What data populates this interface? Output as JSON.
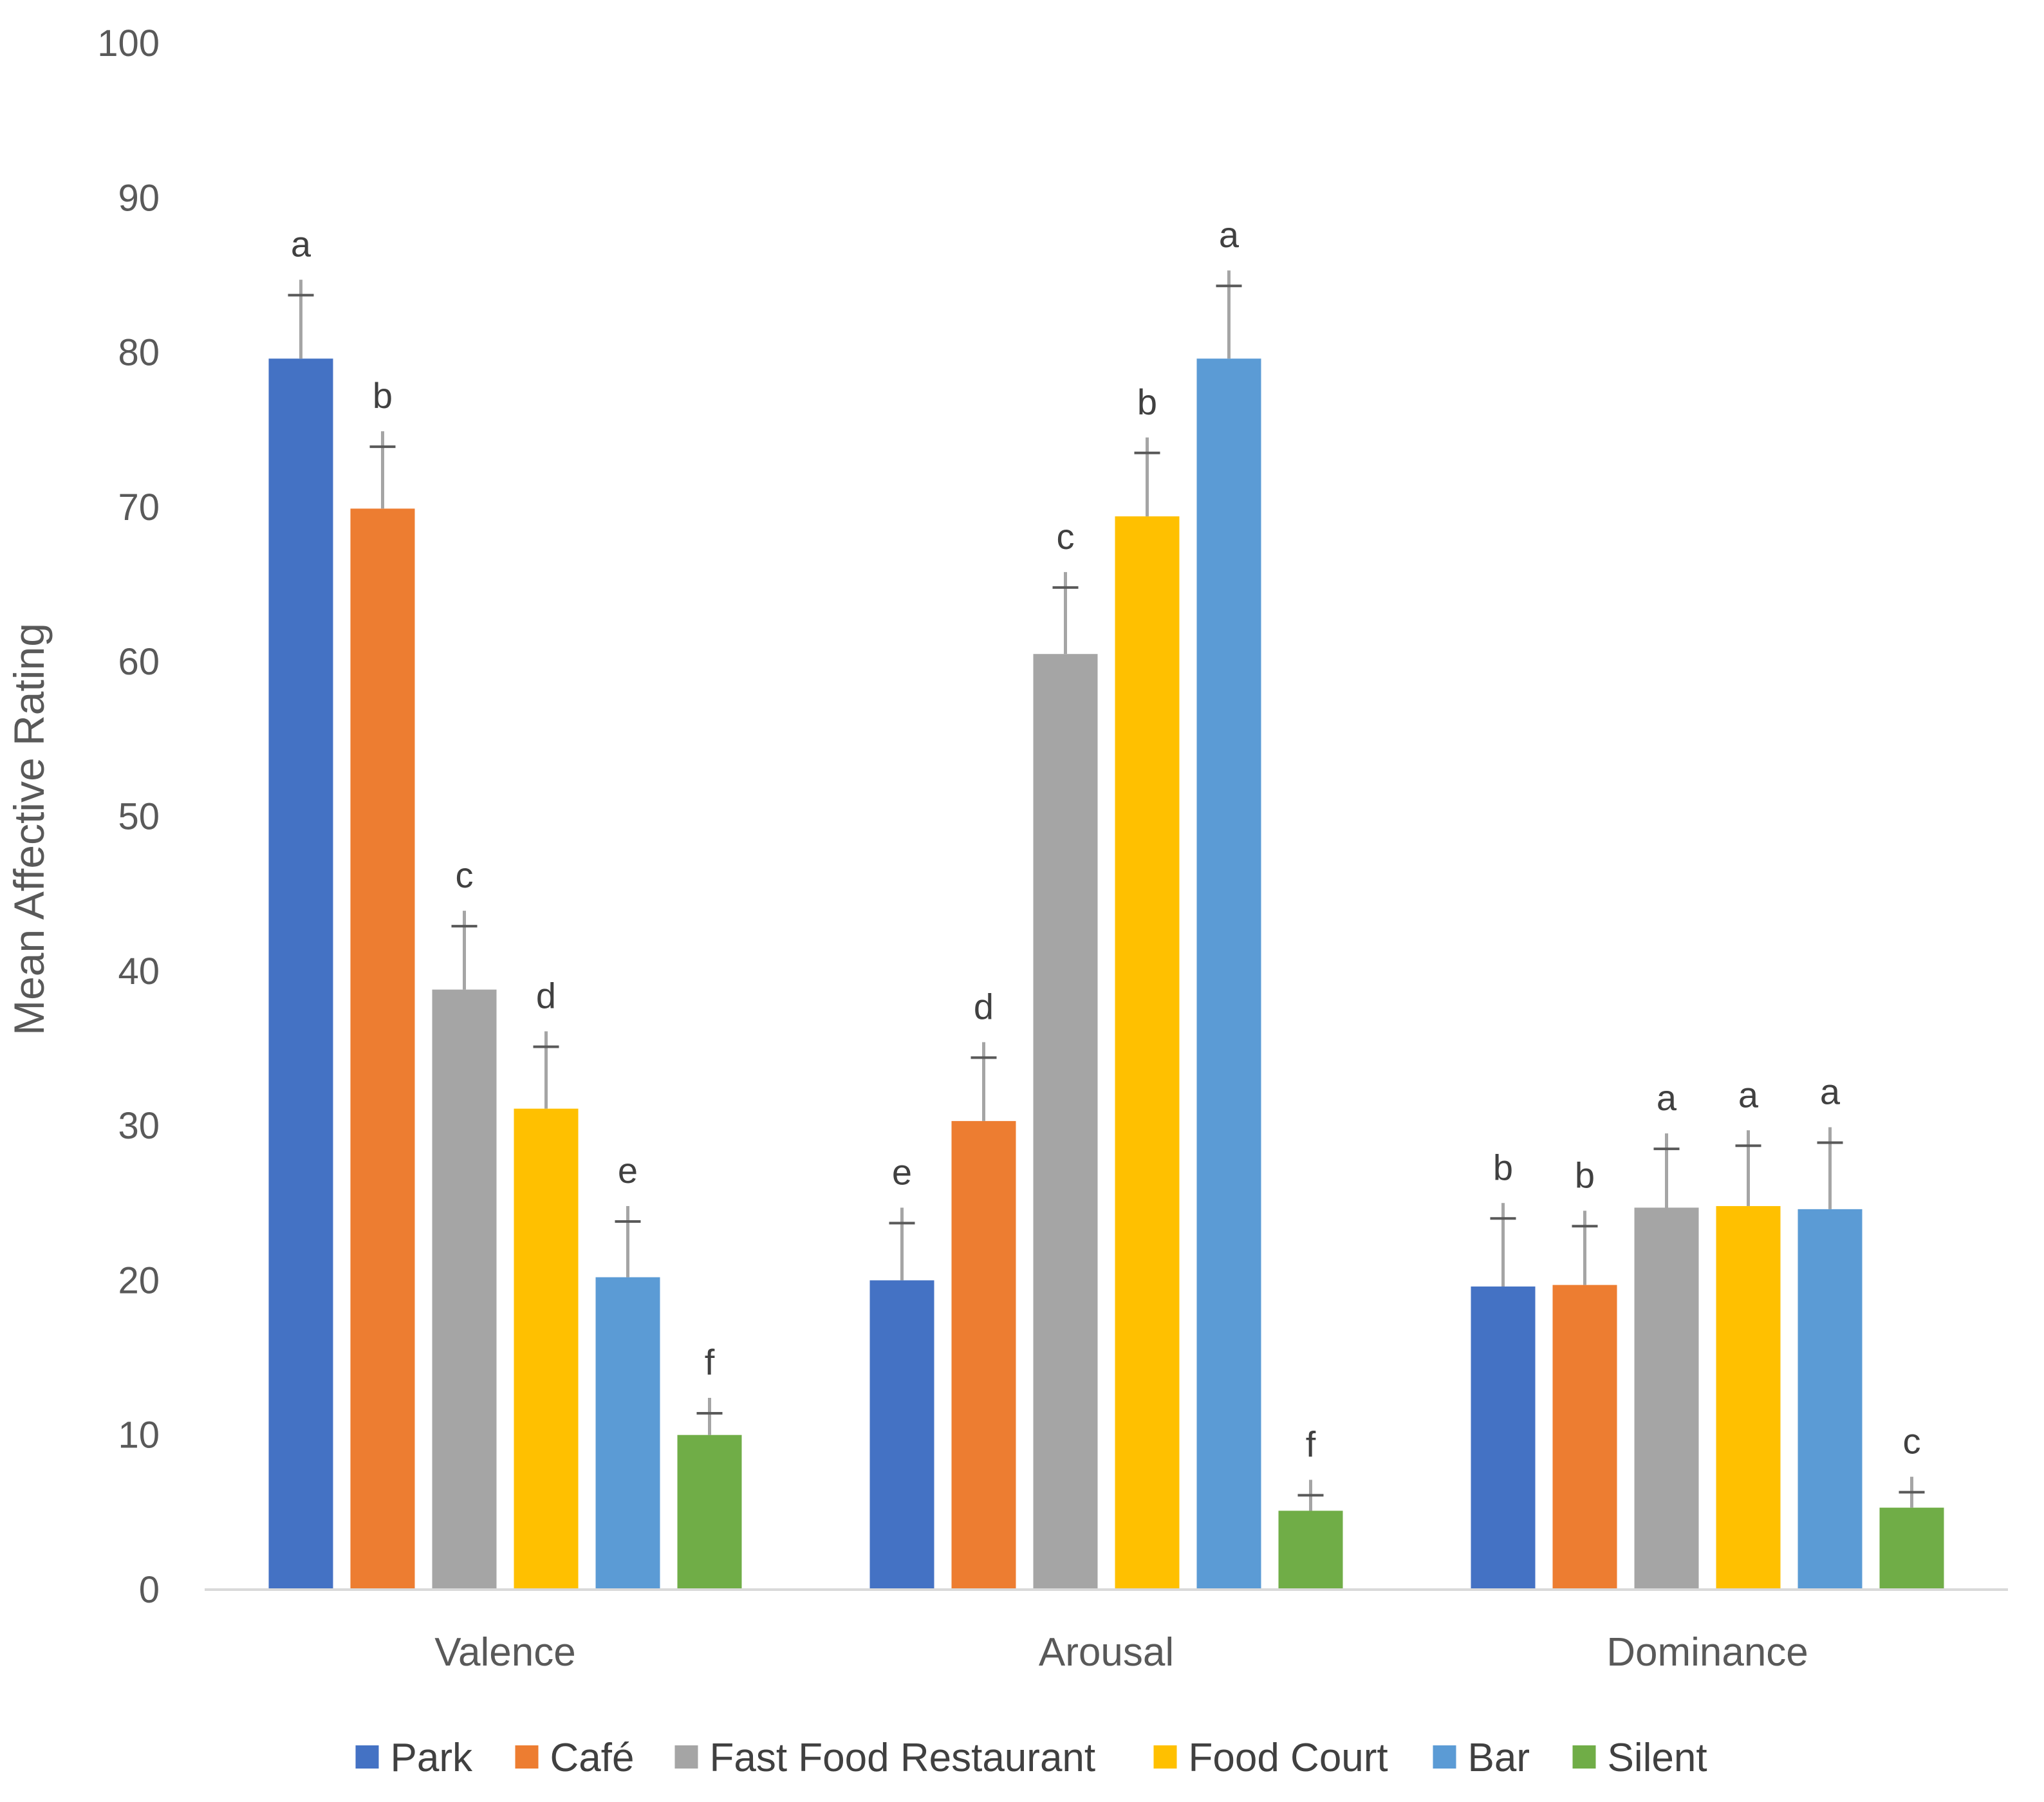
{
  "chart_data": {
    "type": "bar",
    "title": "",
    "xlabel": "",
    "ylabel": "Mean Affective Rating",
    "ylim": [
      0,
      100
    ],
    "yticks": [
      0,
      10,
      20,
      30,
      40,
      50,
      60,
      70,
      80,
      90,
      100
    ],
    "categories": [
      "Valence",
      "Arousal",
      "Dominance"
    ],
    "grid": false,
    "legend_position": "bottom",
    "series": [
      {
        "name": "Park",
        "color": "#4472C4",
        "values": [
          79.6,
          20.0,
          19.6
        ],
        "errors": [
          5.1,
          4.7,
          5.4
        ],
        "labels": [
          "a",
          "e",
          "b"
        ]
      },
      {
        "name": "Café",
        "color": "#ED7D31",
        "values": [
          69.9,
          30.3,
          19.7
        ],
        "errors": [
          5.0,
          5.1,
          4.8
        ],
        "labels": [
          "b",
          "d",
          "b"
        ]
      },
      {
        "name": "Fast Food Restaurant",
        "color": "#A5A5A5",
        "values": [
          38.8,
          60.5,
          24.7
        ],
        "errors": [
          5.1,
          5.3,
          4.8
        ],
        "labels": [
          "c",
          "c",
          "a"
        ]
      },
      {
        "name": "Food Court",
        "color": "#FFC000",
        "values": [
          31.1,
          69.4,
          24.8
        ],
        "errors": [
          5.0,
          5.1,
          4.9
        ],
        "labels": [
          "d",
          "b",
          "a"
        ]
      },
      {
        "name": "Bar",
        "color": "#5B9BD5",
        "values": [
          20.2,
          79.6,
          24.6
        ],
        "errors": [
          4.6,
          5.7,
          5.3
        ],
        "labels": [
          "e",
          "a",
          "a"
        ]
      },
      {
        "name": "Silent",
        "color": "#70AD47",
        "values": [
          10.0,
          5.1,
          5.3
        ],
        "errors": [
          2.4,
          2.0,
          2.0
        ],
        "labels": [
          "f",
          "f",
          "c"
        ]
      }
    ]
  }
}
